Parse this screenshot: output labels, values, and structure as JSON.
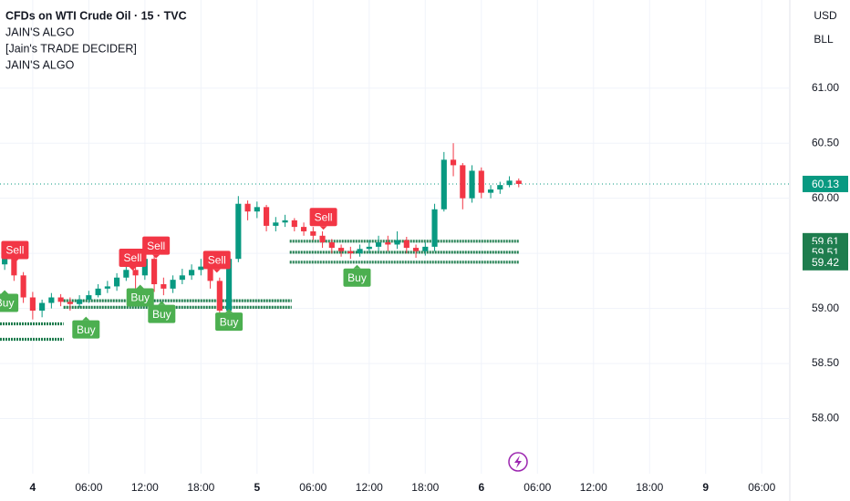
{
  "header": {
    "title": "CFDs on WTI Crude Oil · 15 · TVC",
    "indicators": [
      "JAIN'S ALGO",
      "[Jain's TRADE DECIDER]",
      "JAIN'S ALGO"
    ],
    "currency": "USD",
    "unit": "BLL"
  },
  "chart_data": {
    "type": "candlestick",
    "x": [
      -3,
      -2,
      -1,
      0,
      1,
      2,
      3,
      4,
      5,
      6,
      7,
      8,
      9,
      10,
      11,
      12,
      13,
      14,
      15,
      16,
      17,
      18,
      19,
      20,
      21,
      22,
      23,
      24,
      25,
      26,
      27,
      28,
      29,
      30,
      31,
      32,
      33,
      34,
      35,
      36,
      37,
      38,
      39,
      40,
      41,
      42,
      43,
      44,
      45,
      46,
      47,
      48,
      49,
      50,
      51,
      52
    ],
    "open": [
      59.4,
      59.45,
      59.3,
      59.1,
      58.98,
      59.05,
      59.1,
      59.06,
      59.04,
      59.08,
      59.12,
      59.18,
      59.2,
      59.28,
      59.35,
      59.3,
      59.45,
      59.22,
      59.18,
      59.26,
      59.3,
      59.35,
      59.38,
      59.25,
      58.98,
      59.45,
      59.95,
      59.88,
      59.92,
      59.75,
      59.78,
      59.8,
      59.74,
      59.7,
      59.66,
      59.6,
      59.55,
      59.52,
      59.5,
      59.54,
      59.56,
      59.6,
      59.58,
      59.62,
      59.55,
      59.52,
      59.56,
      59.9,
      60.35,
      60.3,
      60.0,
      60.25,
      60.05,
      60.08,
      60.12,
      60.16
    ],
    "high": [
      59.55,
      59.52,
      59.33,
      59.15,
      59.08,
      59.14,
      59.13,
      59.1,
      59.12,
      59.16,
      59.22,
      59.25,
      59.32,
      59.4,
      59.42,
      59.5,
      59.48,
      59.28,
      59.3,
      59.36,
      59.4,
      59.45,
      59.42,
      59.28,
      59.48,
      60.02,
      59.98,
      59.97,
      59.94,
      59.83,
      59.85,
      59.82,
      59.78,
      59.74,
      59.7,
      59.63,
      59.58,
      59.56,
      59.58,
      59.62,
      59.66,
      59.66,
      59.7,
      59.65,
      59.58,
      59.6,
      59.95,
      60.42,
      60.5,
      60.32,
      60.3,
      60.28,
      60.12,
      60.15,
      60.2,
      60.18
    ],
    "low": [
      59.35,
      59.25,
      59.05,
      58.9,
      58.92,
      59.0,
      59.02,
      58.98,
      59.01,
      59.05,
      59.1,
      59.14,
      59.16,
      59.25,
      59.18,
      59.26,
      59.15,
      59.12,
      59.14,
      59.22,
      59.26,
      59.3,
      59.18,
      58.92,
      58.95,
      59.42,
      59.8,
      59.82,
      59.7,
      59.7,
      59.74,
      59.7,
      59.66,
      59.62,
      59.55,
      59.5,
      59.47,
      59.45,
      59.47,
      59.5,
      59.52,
      59.52,
      59.54,
      59.5,
      59.46,
      59.48,
      59.52,
      59.88,
      60.2,
      59.9,
      59.96,
      60.0,
      60.0,
      60.04,
      60.1,
      60.1
    ],
    "close": [
      59.45,
      59.3,
      59.1,
      58.98,
      59.05,
      59.1,
      59.06,
      59.04,
      59.08,
      59.12,
      59.18,
      59.2,
      59.28,
      59.35,
      59.3,
      59.45,
      59.22,
      59.18,
      59.26,
      59.3,
      59.35,
      59.38,
      59.25,
      58.98,
      59.45,
      59.95,
      59.88,
      59.92,
      59.75,
      59.78,
      59.8,
      59.74,
      59.7,
      59.66,
      59.6,
      59.55,
      59.52,
      59.5,
      59.54,
      59.56,
      59.6,
      59.58,
      59.62,
      59.55,
      59.52,
      59.56,
      59.9,
      60.35,
      60.3,
      60.0,
      60.25,
      60.05,
      60.08,
      60.12,
      60.16,
      60.13
    ],
    "up_color": "#089981",
    "down_color": "#f23645",
    "xlim": [
      -3.5,
      81
    ],
    "ylim": [
      57.5,
      61.8
    ],
    "xticks": [
      {
        "value": 0,
        "label": "4"
      },
      {
        "value": 6,
        "label": "06:00"
      },
      {
        "value": 12,
        "label": "12:00"
      },
      {
        "value": 18,
        "label": "18:00"
      },
      {
        "value": 24,
        "label": "5"
      },
      {
        "value": 30,
        "label": "06:00"
      },
      {
        "value": 36,
        "label": "12:00"
      },
      {
        "value": 42,
        "label": "18:00"
      },
      {
        "value": 48,
        "label": "6"
      },
      {
        "value": 54,
        "label": "06:00"
      },
      {
        "value": 60,
        "label": "12:00"
      },
      {
        "value": 66,
        "label": "18:00"
      },
      {
        "value": 72,
        "label": "9"
      },
      {
        "value": 78,
        "label": "06:00"
      }
    ],
    "yticks": [
      {
        "value": 58,
        "label": "58.00"
      },
      {
        "value": 58.5,
        "label": "58.50"
      },
      {
        "value": 59,
        "label": "59.00"
      },
      {
        "value": 59.5,
        "label": "59.50"
      },
      {
        "value": 60,
        "label": "60.00"
      },
      {
        "value": 60.5,
        "label": "60.50"
      },
      {
        "value": 61,
        "label": "61.00"
      }
    ],
    "last_price": 60.13,
    "level_color": "#1e7d4e",
    "levels": [
      {
        "value": 59.61,
        "start": 27.5,
        "end": 52,
        "badge": true
      },
      {
        "value": 59.51,
        "start": 27.5,
        "end": 52,
        "badge": true
      },
      {
        "value": 59.42,
        "start": 27.5,
        "end": 52,
        "badge": true
      },
      {
        "value": 59.07,
        "start": 3.3,
        "end": 27.7,
        "badge": false
      },
      {
        "value": 59.01,
        "start": 3.3,
        "end": 27.7,
        "badge": false
      },
      {
        "value": 58.86,
        "start": -3.5,
        "end": 3.3,
        "badge": false
      },
      {
        "value": 58.72,
        "start": -3.5,
        "end": 3.3,
        "badge": false
      }
    ],
    "signals": [
      {
        "label": "Sell",
        "x": -1.9,
        "y": 59.53
      },
      {
        "label": "Sell",
        "x": 10.7,
        "y": 59.46
      },
      {
        "label": "Sell",
        "x": 13.2,
        "y": 59.57
      },
      {
        "label": "Sell",
        "x": 19.7,
        "y": 59.44
      },
      {
        "label": "Sell",
        "x": 31.1,
        "y": 59.83
      },
      {
        "label": "Buy",
        "x": -3.0,
        "y": 59.05
      },
      {
        "label": "Buy",
        "x": 5.7,
        "y": 58.81
      },
      {
        "label": "Buy",
        "x": 11.5,
        "y": 59.1
      },
      {
        "label": "Buy",
        "x": 13.8,
        "y": 58.95
      },
      {
        "label": "Buy",
        "x": 21.0,
        "y": 58.88
      },
      {
        "label": "Buy",
        "x": 34.7,
        "y": 59.28
      }
    ]
  }
}
